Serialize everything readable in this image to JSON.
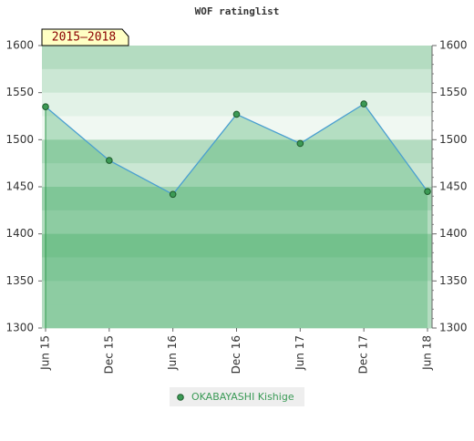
{
  "chart_data": {
    "type": "line",
    "title": "WOF ratinglist",
    "period_label": "2015–2018",
    "categories": [
      "Jun 15",
      "Dec 15",
      "Jun 16",
      "Dec 16",
      "Jun 17",
      "Dec 17",
      "Jun 18"
    ],
    "series": [
      {
        "name": "OKABAYASHI Kishige",
        "color": "#4a9fd0",
        "values": [
          1535,
          1478,
          1442,
          1527,
          1496,
          1538,
          1445
        ]
      }
    ],
    "ylim": [
      1300,
      1600
    ],
    "yticks": [
      1300,
      1350,
      1400,
      1450,
      1500,
      1550,
      1600
    ],
    "y2lim": [
      1300,
      1600
    ],
    "y2ticks": [
      1300,
      1350,
      1400,
      1450,
      1500,
      1550,
      1600
    ]
  }
}
